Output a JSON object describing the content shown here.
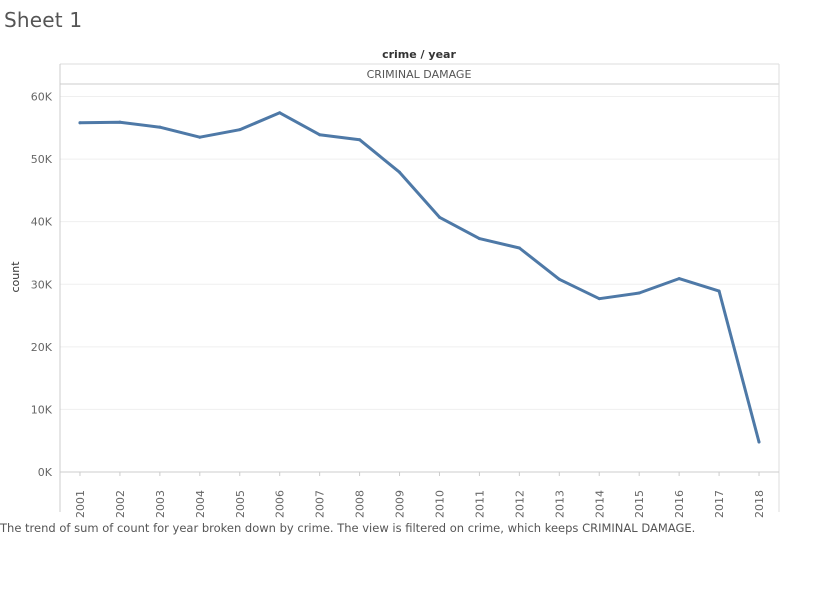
{
  "sheet": {
    "title": "Sheet 1"
  },
  "caption": "The trend of sum of count for year broken down by crime. The view is filtered on crime, which keeps CRIMINAL DAMAGE.",
  "chart_data": {
    "type": "line",
    "header": "crime / year",
    "panel_label": "CRIMINAL DAMAGE",
    "ylabel": "count",
    "xlabel": "",
    "x": [
      "2001",
      "2002",
      "2003",
      "2004",
      "2005",
      "2006",
      "2007",
      "2008",
      "2009",
      "2010",
      "2011",
      "2012",
      "2013",
      "2014",
      "2015",
      "2016",
      "2017",
      "2018"
    ],
    "series": [
      {
        "values": [
          55800,
          55900,
          55100,
          53500,
          54700,
          57400,
          53900,
          53100,
          47900,
          40700,
          37300,
          35800,
          30800,
          27700,
          28600,
          30900,
          28900,
          4800
        ]
      }
    ],
    "ylim": [
      0,
      62000
    ],
    "yticks": [
      0,
      10000,
      20000,
      30000,
      40000,
      50000,
      60000
    ],
    "ytick_labels": [
      "0K",
      "10K",
      "20K",
      "30K",
      "40K",
      "50K",
      "60K"
    ],
    "grid": true,
    "line_color": "#4e79a7"
  }
}
